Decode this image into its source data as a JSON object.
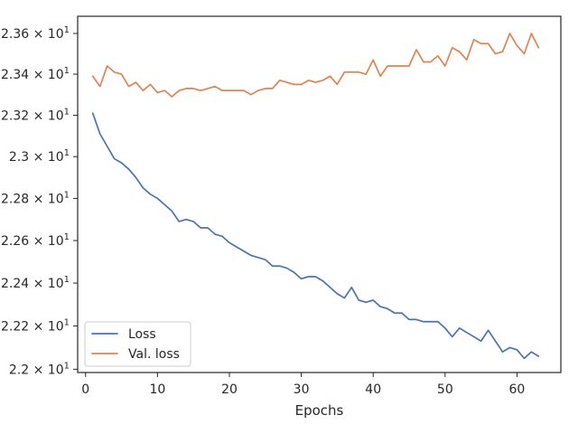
{
  "chart_data": {
    "type": "line",
    "title": "",
    "xlabel": "Epochs",
    "ylabel": "",
    "xlim": [
      -1.1,
      66.1
    ],
    "ylim": [
      21.985,
      23.685
    ],
    "x_ticks": [
      0,
      10,
      20,
      30,
      40,
      50,
      60
    ],
    "x_tick_labels": [
      "0",
      "10",
      "20",
      "30",
      "40",
      "50",
      "60"
    ],
    "y_ticks": [
      {
        "value": 22.0,
        "base": "2.2 × 10",
        "exp": "1"
      },
      {
        "value": 22.2,
        "base": "2.22 × 10",
        "exp": "1"
      },
      {
        "value": 22.4,
        "base": "2.24 × 10",
        "exp": "1"
      },
      {
        "value": 22.6,
        "base": "2.26 × 10",
        "exp": "1"
      },
      {
        "value": 22.8,
        "base": "2.28 × 10",
        "exp": "1"
      },
      {
        "value": 23.0,
        "base": "2.3 × 10",
        "exp": "1"
      },
      {
        "value": 23.2,
        "base": "2.32 × 10",
        "exp": "1"
      },
      {
        "value": 23.4,
        "base": "2.34 × 10",
        "exp": "1"
      },
      {
        "value": 23.6,
        "base": "2.36 × 10",
        "exp": "1"
      }
    ],
    "y_scale": "log",
    "grid": false,
    "legend_position": "lower-left",
    "x": [
      1,
      2,
      3,
      4,
      5,
      6,
      7,
      8,
      9,
      10,
      11,
      12,
      13,
      14,
      15,
      16,
      17,
      18,
      19,
      20,
      21,
      22,
      23,
      24,
      25,
      26,
      27,
      28,
      29,
      30,
      31,
      32,
      33,
      34,
      35,
      36,
      37,
      38,
      39,
      40,
      41,
      42,
      43,
      44,
      45,
      46,
      47,
      48,
      49,
      50,
      51,
      52,
      53,
      54,
      55,
      56,
      57,
      58,
      59,
      60,
      61,
      62,
      63
    ],
    "series": [
      {
        "name": "Loss",
        "color": "#4c72b0",
        "values": [
          23.21,
          23.11,
          23.05,
          22.99,
          22.97,
          22.94,
          22.9,
          22.85,
          22.82,
          22.8,
          22.77,
          22.74,
          22.69,
          22.7,
          22.69,
          22.66,
          22.66,
          22.63,
          22.62,
          22.59,
          22.57,
          22.55,
          22.53,
          22.52,
          22.51,
          22.48,
          22.48,
          22.47,
          22.45,
          22.42,
          22.43,
          22.43,
          22.41,
          22.38,
          22.35,
          22.33,
          22.38,
          22.32,
          22.31,
          22.32,
          22.29,
          22.28,
          22.26,
          22.26,
          22.23,
          22.23,
          22.22,
          22.22,
          22.22,
          22.19,
          22.15,
          22.19,
          22.17,
          22.15,
          22.13,
          22.18,
          22.13,
          22.08,
          22.1,
          22.09,
          22.05,
          22.08,
          22.06
        ]
      },
      {
        "name": "Val. loss",
        "color": "#dd8452",
        "values": [
          23.39,
          23.34,
          23.44,
          23.41,
          23.4,
          23.34,
          23.36,
          23.32,
          23.35,
          23.31,
          23.32,
          23.29,
          23.32,
          23.33,
          23.33,
          23.32,
          23.33,
          23.34,
          23.32,
          23.32,
          23.32,
          23.32,
          23.3,
          23.32,
          23.33,
          23.33,
          23.37,
          23.36,
          23.35,
          23.35,
          23.37,
          23.36,
          23.37,
          23.39,
          23.35,
          23.41,
          23.41,
          23.41,
          23.4,
          23.47,
          23.39,
          23.44,
          23.44,
          23.44,
          23.44,
          23.52,
          23.46,
          23.46,
          23.49,
          23.44,
          23.53,
          23.51,
          23.47,
          23.57,
          23.55,
          23.55,
          23.5,
          23.51,
          23.6,
          23.54,
          23.5,
          23.6,
          23.53
        ]
      }
    ]
  }
}
